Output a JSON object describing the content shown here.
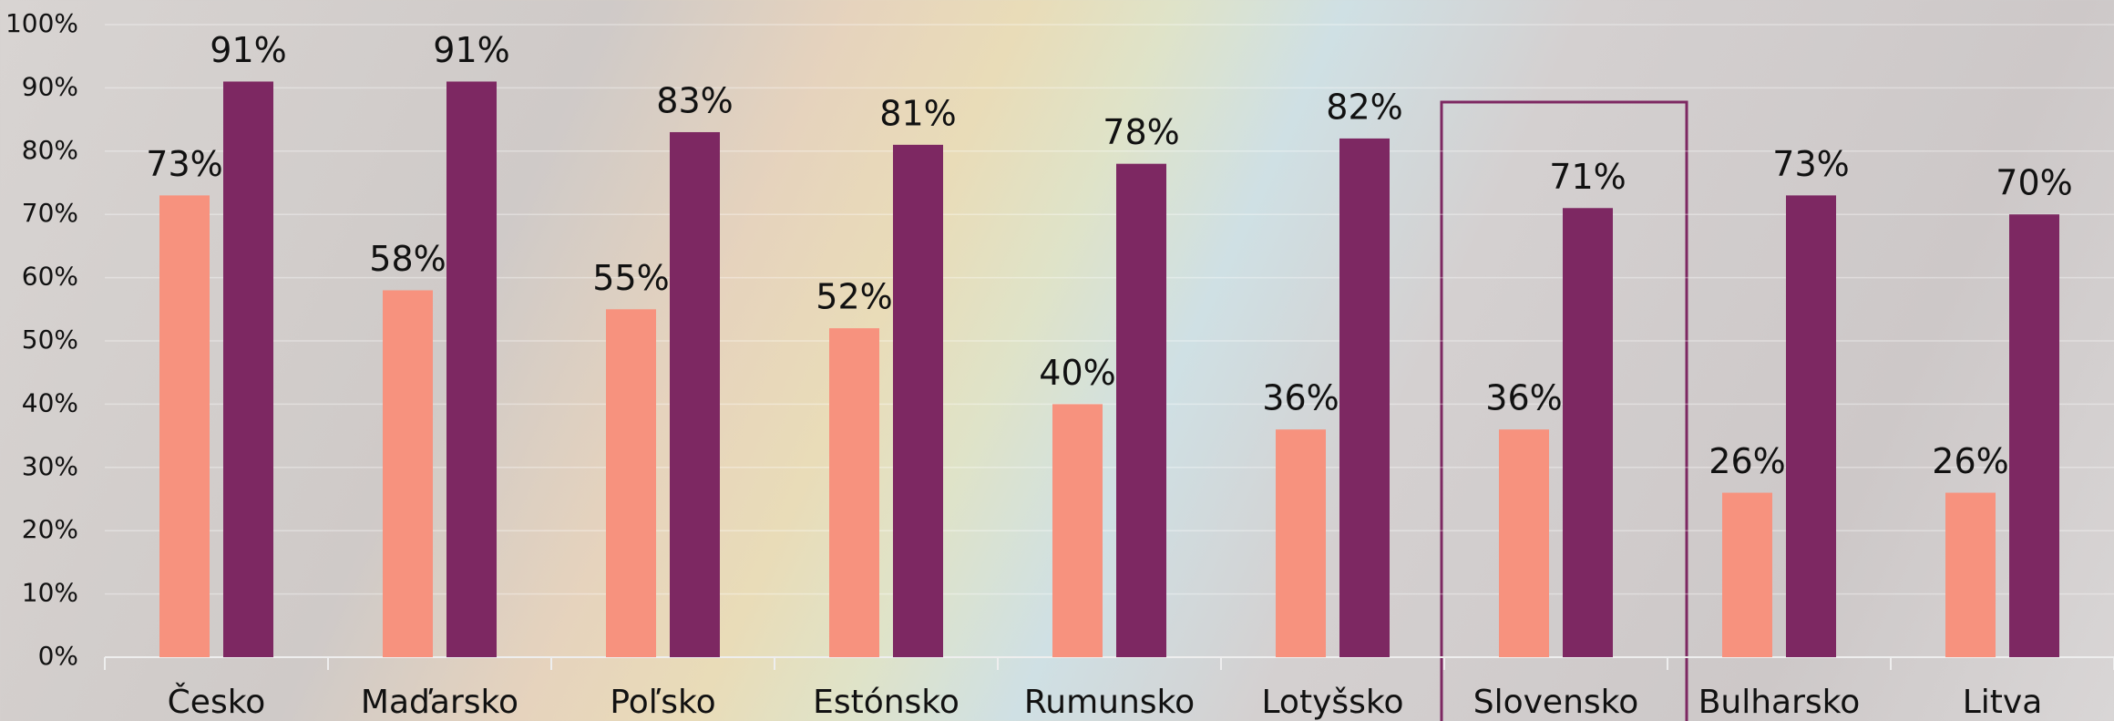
{
  "chart_data": {
    "type": "bar",
    "categories": [
      "Česko",
      "Maďarsko",
      "Poľsko",
      "Estónsko",
      "Rumunsko",
      "Lotyšsko",
      "Slovensko",
      "Bulharsko",
      "Litva"
    ],
    "series": [
      {
        "color": "#f7927e",
        "values": [
          73,
          58,
          55,
          52,
          40,
          36,
          36,
          26,
          26
        ],
        "value_labels": [
          "73%",
          "58%",
          "55%",
          "52%",
          "40%",
          "36%",
          "36%",
          "26%",
          "26%"
        ]
      },
      {
        "color": "#7d2862",
        "values": [
          91,
          91,
          83,
          81,
          78,
          82,
          71,
          73,
          70
        ],
        "value_labels": [
          "91%",
          "91%",
          "83%",
          "81%",
          "78%",
          "82%",
          "71%",
          "73%",
          "70%"
        ]
      }
    ],
    "ylim": [
      0,
      100
    ],
    "yticks": [
      {
        "value": 0,
        "label": "0%"
      },
      {
        "value": 10,
        "label": "10%"
      },
      {
        "value": 20,
        "label": "20%"
      },
      {
        "value": 30,
        "label": "30%"
      },
      {
        "value": 40,
        "label": "40%"
      },
      {
        "value": 50,
        "label": "50%"
      },
      {
        "value": 60,
        "label": "60%"
      },
      {
        "value": 70,
        "label": "70%"
      },
      {
        "value": 80,
        "label": "80%"
      },
      {
        "value": 90,
        "label": "90%"
      },
      {
        "value": 100,
        "label": "100%"
      }
    ],
    "grid": true
  }
}
